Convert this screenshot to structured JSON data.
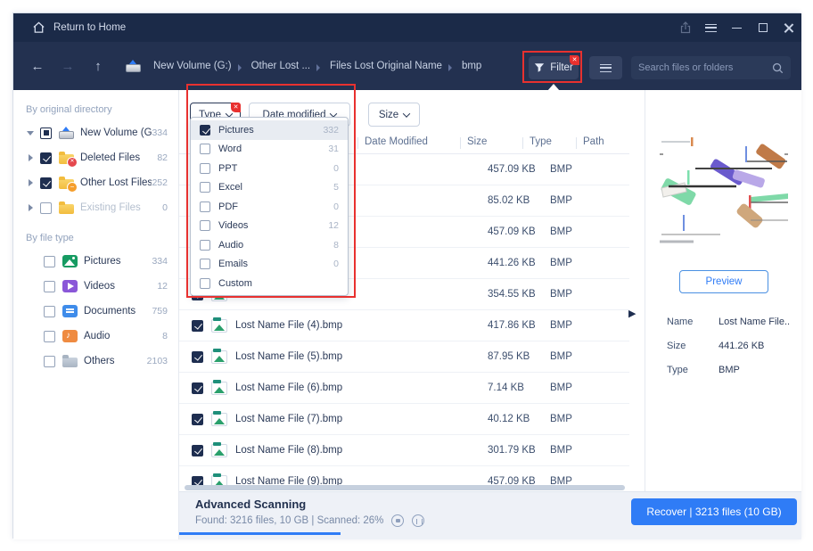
{
  "titlebar": {
    "home_label": "Return to Home"
  },
  "navbar": {
    "breadcrumbs": [
      "New Volume (G:)",
      "Other Lost ...",
      "Files Lost Original Name",
      "bmp"
    ],
    "filter_label": "Filter",
    "search_placeholder": "Search files or folders"
  },
  "icons": {
    "back_arrow": "←",
    "forward_arrow": "→",
    "up_arrow": "↑",
    "preview_collapse": "▶"
  },
  "sidebar": {
    "section1_title": "By original directory",
    "directory_items": [
      {
        "label": "New Volume (G:)",
        "count": "334",
        "checkbox": "partial",
        "caret": "down",
        "icon": "drive-icon",
        "disabled": false
      },
      {
        "label": "Deleted Files",
        "count": "82",
        "checkbox": "checked",
        "caret": "right",
        "icon": "folder-deleted-icon",
        "disabled": false
      },
      {
        "label": "Other Lost Files",
        "count": "252",
        "checkbox": "checked",
        "caret": "right",
        "icon": "folder-lost-icon",
        "disabled": false
      },
      {
        "label": "Existing Files",
        "count": "0",
        "checkbox": "unchecked",
        "caret": "right",
        "icon": "folder-icon",
        "disabled": true
      }
    ],
    "section2_title": "By file type",
    "filetype_items": [
      {
        "label": "Pictures",
        "count": "334",
        "icon": "pictures-icon"
      },
      {
        "label": "Videos",
        "count": "12",
        "icon": "videos-icon"
      },
      {
        "label": "Documents",
        "count": "759",
        "icon": "documents-icon"
      },
      {
        "label": "Audio",
        "count": "8",
        "icon": "audio-icon"
      },
      {
        "label": "Others",
        "count": "2103",
        "icon": "others-icon"
      }
    ]
  },
  "filter_bar": {
    "type_label": "Type",
    "date_label": "Date modified",
    "size_label": "Size"
  },
  "filter_dropdown": {
    "items": [
      {
        "label": "Pictures",
        "count": "332",
        "checked": true,
        "selected": true
      },
      {
        "label": "Word",
        "count": "31",
        "checked": false,
        "selected": false
      },
      {
        "label": "PPT",
        "count": "0",
        "checked": false,
        "selected": false
      },
      {
        "label": "Excel",
        "count": "5",
        "checked": false,
        "selected": false
      },
      {
        "label": "PDF",
        "count": "0",
        "checked": false,
        "selected": false
      },
      {
        "label": "Videos",
        "count": "12",
        "checked": false,
        "selected": false
      },
      {
        "label": "Audio",
        "count": "8",
        "checked": false,
        "selected": false
      },
      {
        "label": "Emails",
        "count": "0",
        "checked": false,
        "selected": false
      },
      {
        "label": "Custom",
        "count": "",
        "checked": false,
        "selected": false
      }
    ]
  },
  "file_table": {
    "columns": [
      "Date Modified",
      "Size",
      "Type",
      "Path"
    ],
    "rows": [
      {
        "name": "",
        "size": "457.09 KB",
        "type": "BMP",
        "checked": true
      },
      {
        "name": "",
        "size": "85.02 KB",
        "type": "BMP",
        "checked": true
      },
      {
        "name": "",
        "size": "457.09 KB",
        "type": "BMP",
        "checked": true
      },
      {
        "name": "",
        "size": "441.26 KB",
        "type": "BMP",
        "checked": true
      },
      {
        "name": "",
        "size": "354.55 KB",
        "type": "BMP",
        "checked": true
      },
      {
        "name": "Lost Name File (4).bmp",
        "size": "417.86 KB",
        "type": "BMP",
        "checked": true
      },
      {
        "name": "Lost Name File (5).bmp",
        "size": "87.95 KB",
        "type": "BMP",
        "checked": true
      },
      {
        "name": "Lost Name File (6).bmp",
        "size": "7.14 KB",
        "type": "BMP",
        "checked": true
      },
      {
        "name": "Lost Name File (7).bmp",
        "size": "40.12 KB",
        "type": "BMP",
        "checked": true
      },
      {
        "name": "Lost Name File (8).bmp",
        "size": "301.79 KB",
        "type": "BMP",
        "checked": true
      },
      {
        "name": "Lost Name File (9).bmp",
        "size": "457.09 KB",
        "type": "BMP",
        "checked": true
      }
    ]
  },
  "preview": {
    "button_label": "Preview",
    "fields": [
      {
        "label": "Name",
        "value": "Lost Name File.."
      },
      {
        "label": "Size",
        "value": "441.26 KB"
      },
      {
        "label": "Type",
        "value": "BMP"
      }
    ]
  },
  "footer": {
    "title": "Advanced Scanning",
    "status": "Found: 3216 files, 10 GB | Scanned: 26%",
    "progress_percent": 26,
    "recover_label": "Recover | 3213 files (10 GB)"
  },
  "colors": {
    "accent_blue": "#2f7cf6",
    "titlebar_navy": "#1b2a48",
    "navbar_navy": "#233150",
    "highlight_red": "#e8312f",
    "check_navy": "#1e2e50"
  }
}
